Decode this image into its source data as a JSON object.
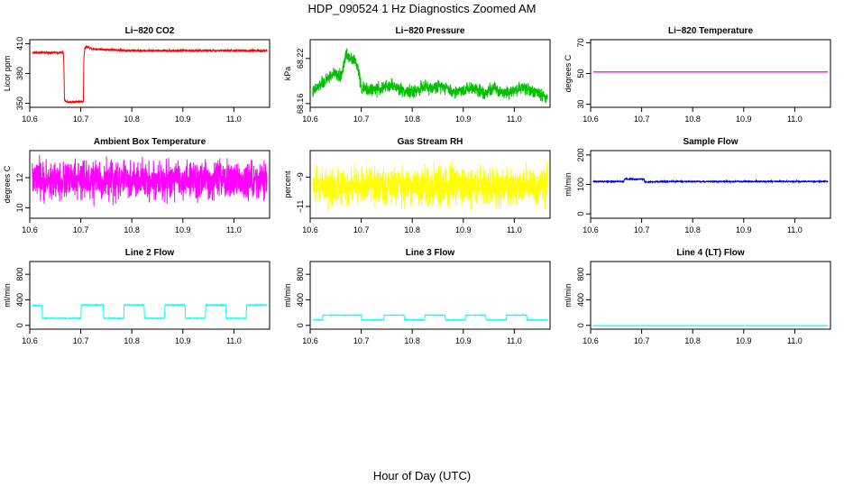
{
  "figure": {
    "title": "HDP_090524  1 Hz Diagnostics Zoomed AM",
    "xlabel": "Hour of Day (UTC)"
  },
  "chart_data": [
    {
      "id": "co2",
      "type": "line",
      "title": "Li−820 CO2",
      "ylabel": "Licor ppm",
      "color": "#ff0000",
      "xlim": [
        10.6,
        11.07
      ],
      "ylim": [
        346,
        414
      ],
      "xticks": [
        10.6,
        10.7,
        10.8,
        10.9,
        11.0
      ],
      "xtick_labels": [
        "10.6",
        "10.7",
        "10.8",
        "10.9",
        "11.0"
      ],
      "yticks": [
        350,
        380,
        410
      ],
      "ytick_labels": [
        "350",
        "380",
        "410"
      ],
      "x": [
        10.605,
        10.666,
        10.667,
        10.668,
        10.675,
        10.705,
        10.706,
        10.708,
        10.712,
        10.72,
        10.75,
        10.8,
        10.9,
        11.0,
        11.065
      ],
      "y": [
        401,
        401,
        385,
        353,
        351,
        352,
        395,
        406,
        407,
        405,
        404,
        403,
        403,
        403,
        403
      ],
      "noise": 0.8
    },
    {
      "id": "pressure",
      "type": "line",
      "title": "Li−820 Pressure",
      "ylabel": "kPa",
      "color": "#00c000",
      "xlim": [
        10.6,
        11.07
      ],
      "ylim": [
        68.155,
        68.245
      ],
      "xticks": [
        10.6,
        10.7,
        10.8,
        10.9,
        11.0
      ],
      "xtick_labels": [
        "10.6",
        "10.7",
        "10.8",
        "10.9",
        "11.0"
      ],
      "yticks": [
        68.16,
        68.22
      ],
      "ytick_labels": [
        "68.16",
        "68.22"
      ],
      "x": [
        10.605,
        10.62,
        10.63,
        10.645,
        10.66,
        10.67,
        10.685,
        10.695,
        10.7,
        10.72,
        10.74,
        10.76,
        10.78,
        10.8,
        10.82,
        10.84,
        10.86,
        10.88,
        10.9,
        10.92,
        10.94,
        10.96,
        10.98,
        11.0,
        11.02,
        11.04,
        11.06,
        11.065
      ],
      "y": [
        68.175,
        68.185,
        68.19,
        68.2,
        68.195,
        68.225,
        68.22,
        68.205,
        68.18,
        68.178,
        68.18,
        68.185,
        68.178,
        68.175,
        68.182,
        68.18,
        68.185,
        68.175,
        68.178,
        68.182,
        68.175,
        68.18,
        68.175,
        68.178,
        68.182,
        68.175,
        68.17,
        68.168
      ],
      "noise": 0.006
    },
    {
      "id": "licor_temp",
      "type": "line",
      "title": "Li−820 Temperature",
      "ylabel": "degrees C",
      "color": "#ff00ff",
      "xlim": [
        10.6,
        11.07
      ],
      "ylim": [
        28,
        72
      ],
      "xticks": [
        10.6,
        10.7,
        10.8,
        10.9,
        11.0
      ],
      "xtick_labels": [
        "10.6",
        "10.7",
        "10.8",
        "10.9",
        "11.0"
      ],
      "yticks": [
        30,
        50,
        70
      ],
      "ytick_labels": [
        "30",
        "50",
        "70"
      ],
      "x": [
        10.605,
        11.065
      ],
      "y": [
        51,
        51
      ],
      "noise": 0
    },
    {
      "id": "box_temp",
      "type": "line",
      "title": "Ambient Box Temperature",
      "ylabel": "degrees C",
      "color": "#ff00ff",
      "xlim": [
        10.6,
        11.07
      ],
      "ylim": [
        9.3,
        13.8
      ],
      "xticks": [
        10.6,
        10.7,
        10.8,
        10.9,
        11.0
      ],
      "xtick_labels": [
        "10.6",
        "10.7",
        "10.8",
        "10.9",
        "11.0"
      ],
      "yticks": [
        10,
        12
      ],
      "ytick_labels": [
        "10",
        "12"
      ],
      "x": [
        10.605,
        11.065
      ],
      "y": [
        11.8,
        11.8
      ],
      "noise": 0.9
    },
    {
      "id": "rh",
      "type": "line",
      "title": "Gas Stream RH",
      "ylabel": "percent",
      "color": "#ffff00",
      "xlim": [
        10.6,
        11.07
      ],
      "ylim": [
        -11.8,
        -7.2
      ],
      "xticks": [
        10.6,
        10.7,
        10.8,
        10.9,
        11.0
      ],
      "xtick_labels": [
        "10.6",
        "10.7",
        "10.8",
        "10.9",
        "11.0"
      ],
      "yticks": [
        -11,
        -9
      ],
      "ytick_labels": [
        "−11",
        "−9"
      ],
      "x": [
        10.605,
        11.065
      ],
      "y": [
        -9.6,
        -9.6
      ],
      "noise": 0.9
    },
    {
      "id": "sample_flow",
      "type": "line",
      "title": "Sample Flow",
      "ylabel": "ml/min",
      "color": "#0000cc",
      "xlim": [
        10.6,
        11.07
      ],
      "ylim": [
        -15,
        215
      ],
      "xticks": [
        10.6,
        10.7,
        10.8,
        10.9,
        11.0
      ],
      "xtick_labels": [
        "10.6",
        "10.7",
        "10.8",
        "10.9",
        "11.0"
      ],
      "yticks": [
        0,
        100,
        200
      ],
      "ytick_labels": [
        "0",
        "100",
        "200"
      ],
      "x": [
        10.605,
        10.665,
        10.666,
        10.705,
        10.706,
        10.75,
        10.9,
        11.065
      ],
      "y": [
        110,
        110,
        118,
        118,
        108,
        110,
        110,
        110
      ],
      "noise": 1.5
    },
    {
      "id": "line2",
      "type": "line",
      "title": "Line 2 Flow",
      "ylabel": "ml/min",
      "color": "#00ffff",
      "xlim": [
        10.6,
        11.07
      ],
      "ylim": [
        -60,
        1000
      ],
      "xticks": [
        10.6,
        10.7,
        10.8,
        10.9,
        11.0
      ],
      "xtick_labels": [
        "10.6",
        "10.7",
        "10.8",
        "10.9",
        "11.0"
      ],
      "yticks": [
        0,
        400,
        800
      ],
      "ytick_labels": [
        "0",
        "400",
        "800"
      ],
      "x": [
        10.605,
        10.624,
        10.625,
        10.7,
        10.701,
        10.744,
        10.745,
        10.784,
        10.785,
        10.824,
        10.825,
        10.864,
        10.865,
        10.904,
        10.905,
        10.944,
        10.945,
        10.984,
        10.985,
        11.024,
        11.025,
        11.065
      ],
      "y": [
        310,
        310,
        110,
        110,
        320,
        320,
        110,
        110,
        320,
        320,
        110,
        110,
        320,
        320,
        110,
        110,
        320,
        320,
        110,
        110,
        320,
        320
      ],
      "noise": 4
    },
    {
      "id": "line3",
      "type": "line",
      "title": "Line 3 Flow",
      "ylabel": "ml/min",
      "color": "#00ffff",
      "xlim": [
        10.6,
        11.07
      ],
      "ylim": [
        -60,
        1000
      ],
      "xticks": [
        10.6,
        10.7,
        10.8,
        10.9,
        11.0
      ],
      "xtick_labels": [
        "10.6",
        "10.7",
        "10.8",
        "10.9",
        "11.0"
      ],
      "yticks": [
        0,
        400,
        800
      ],
      "ytick_labels": [
        "0",
        "400",
        "800"
      ],
      "x": [
        10.605,
        10.624,
        10.625,
        10.7,
        10.701,
        10.744,
        10.745,
        10.784,
        10.785,
        10.824,
        10.825,
        10.864,
        10.865,
        10.904,
        10.905,
        10.944,
        10.945,
        10.984,
        10.985,
        11.024,
        11.025,
        11.065
      ],
      "y": [
        85,
        85,
        160,
        160,
        85,
        85,
        160,
        160,
        85,
        85,
        160,
        160,
        85,
        85,
        160,
        160,
        85,
        85,
        160,
        160,
        85,
        85
      ],
      "noise": 3
    },
    {
      "id": "line4",
      "type": "line",
      "title": "Line 4 (LT) Flow",
      "ylabel": "ml/min",
      "color": "#00ffff",
      "xlim": [
        10.6,
        11.07
      ],
      "ylim": [
        -60,
        1000
      ],
      "xticks": [
        10.6,
        10.7,
        10.8,
        10.9,
        11.0
      ],
      "xtick_labels": [
        "10.6",
        "10.7",
        "10.8",
        "10.9",
        "11.0"
      ],
      "yticks": [
        0,
        400,
        800
      ],
      "ytick_labels": [
        "0",
        "400",
        "800"
      ],
      "x": [
        10.605,
        11.065
      ],
      "y": [
        -5,
        -5
      ],
      "noise": 0
    }
  ]
}
